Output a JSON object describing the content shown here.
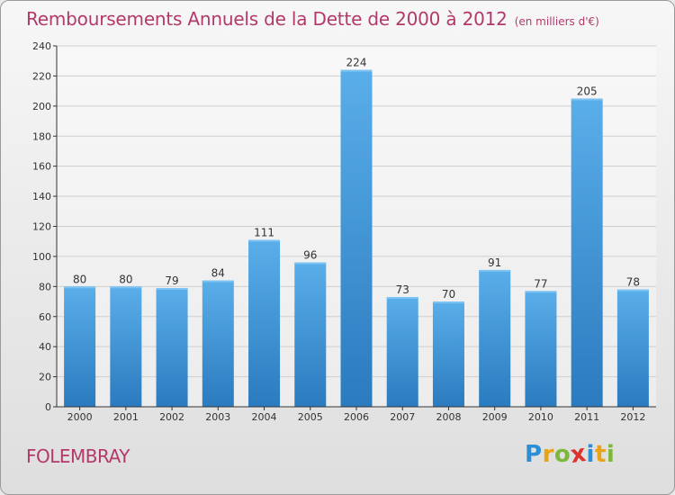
{
  "title": "Remboursements Annuels de la Dette de 2000 à 2012",
  "unit_note": "(en milliers d'€)",
  "place": "FOLEMBRAY",
  "logo": {
    "text": "Proxiti",
    "letters": [
      {
        "ch": "P",
        "color": "#2a8fd6"
      },
      {
        "ch": "r",
        "color": "#e8a317"
      },
      {
        "ch": "o",
        "color": "#7cb83a"
      },
      {
        "ch": "x",
        "color": "#d9332b"
      },
      {
        "ch": "i",
        "color": "#2a8fd6"
      },
      {
        "ch": "t",
        "color": "#e8a317"
      },
      {
        "ch": "i",
        "color": "#7cb83a"
      }
    ]
  },
  "colors": {
    "title": "#b3396b",
    "bar_top": "#5aaee9",
    "bar_bottom": "#2a7bbf",
    "grid": "#cfcfcf",
    "axis": "#333333"
  },
  "chart_data": {
    "type": "bar",
    "categories": [
      "2000",
      "2001",
      "2002",
      "2003",
      "2004",
      "2005",
      "2006",
      "2007",
      "2008",
      "2009",
      "2010",
      "2011",
      "2012"
    ],
    "values": [
      80,
      80,
      79,
      84,
      111,
      96,
      224,
      73,
      70,
      91,
      77,
      205,
      78
    ],
    "ylim": [
      0,
      240
    ],
    "yticks": [
      0,
      20,
      40,
      60,
      80,
      100,
      120,
      140,
      160,
      180,
      200,
      220,
      240
    ],
    "grid": true,
    "data_labels": true
  }
}
